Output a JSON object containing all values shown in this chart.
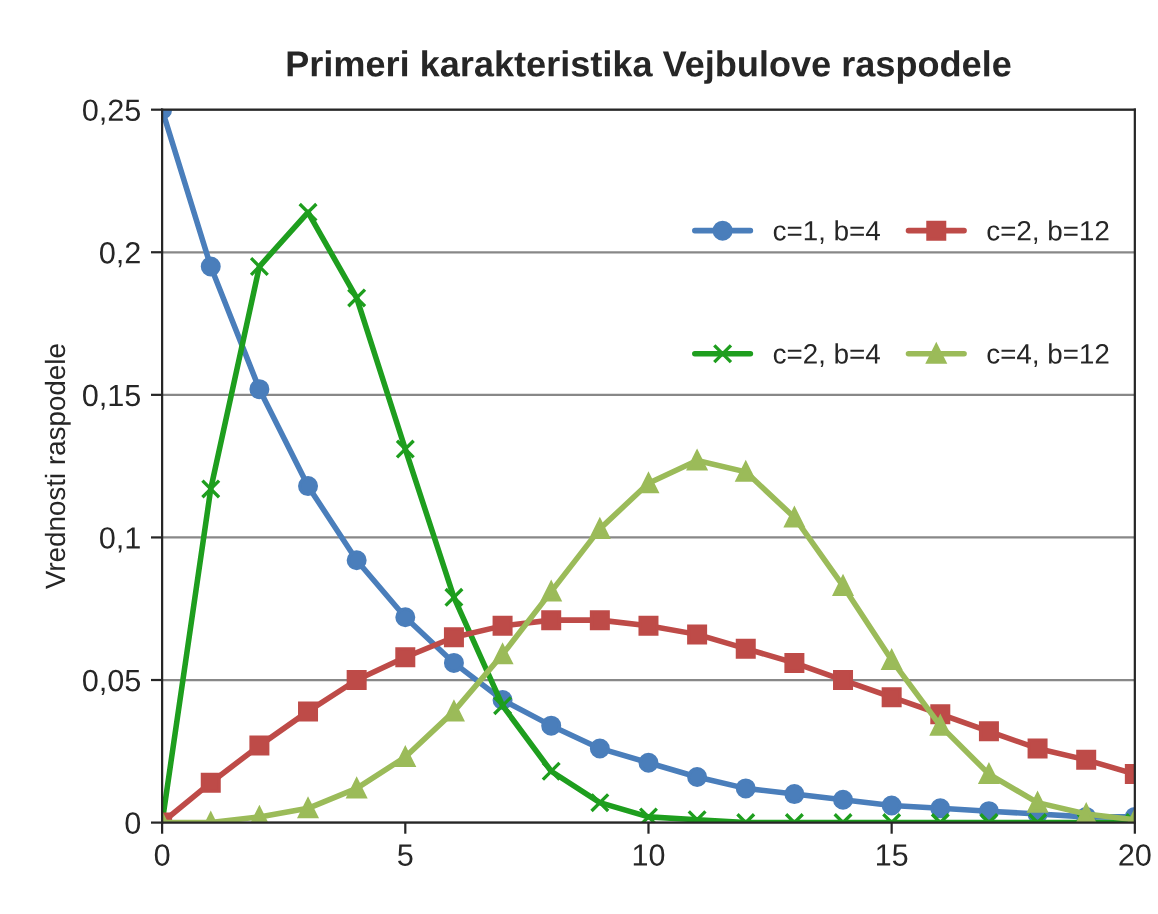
{
  "chart_data": {
    "type": "line",
    "title": "Primeri karakteristika Vejbulove raspodele",
    "ylabel": "Vrednosti raspodele",
    "x": [
      0,
      1,
      2,
      3,
      4,
      5,
      6,
      7,
      8,
      9,
      10,
      11,
      12,
      13,
      14,
      15,
      16,
      17,
      18,
      19,
      20
    ],
    "series": [
      {
        "name": "c=1, b=4",
        "color": "#4a7ebb",
        "marker": "circle",
        "values": [
          0.25,
          0.195,
          0.152,
          0.118,
          0.092,
          0.072,
          0.056,
          0.043,
          0.034,
          0.026,
          0.021,
          0.016,
          0.012,
          0.01,
          0.008,
          0.006,
          0.005,
          0.004,
          0.003,
          0.002,
          0.002
        ]
      },
      {
        "name": "c=2, b=4",
        "color": "#1e9e1e",
        "marker": "cross",
        "values": [
          0,
          0.117,
          0.195,
          0.214,
          0.184,
          0.131,
          0.079,
          0.041,
          0.018,
          0.007,
          0.002,
          0.001,
          0,
          0,
          0,
          0,
          0,
          0,
          0,
          0,
          0
        ]
      },
      {
        "name": "c=2, b=12",
        "color": "#be4b48",
        "marker": "square",
        "values": [
          0,
          0.014,
          0.027,
          0.039,
          0.05,
          0.058,
          0.065,
          0.069,
          0.071,
          0.071,
          0.069,
          0.066,
          0.061,
          0.056,
          0.05,
          0.044,
          0.038,
          0.032,
          0.026,
          0.022,
          0.017
        ]
      },
      {
        "name": "c=4, b=12",
        "color": "#9bbb59",
        "marker": "triangle",
        "values": [
          0,
          0,
          0.002,
          0.005,
          0.012,
          0.023,
          0.039,
          0.059,
          0.081,
          0.103,
          0.119,
          0.127,
          0.123,
          0.107,
          0.083,
          0.057,
          0.034,
          0.017,
          0.007,
          0.003,
          0.001
        ]
      }
    ],
    "xlim": [
      0,
      20
    ],
    "xticks": [
      0,
      5,
      10,
      15,
      20
    ],
    "ylim": [
      0,
      0.25
    ],
    "yticks": [
      0,
      {
        "value": 0.05,
        "label": "0,05"
      },
      {
        "value": 0.1,
        "label": "0,1"
      },
      {
        "value": 0.15,
        "label": "0,15"
      },
      {
        "value": 0.2,
        "label": "0,2"
      },
      {
        "value": 0.25,
        "label": "0,25"
      }
    ],
    "grid": "y",
    "legend": "top right",
    "line_style": "solid"
  }
}
